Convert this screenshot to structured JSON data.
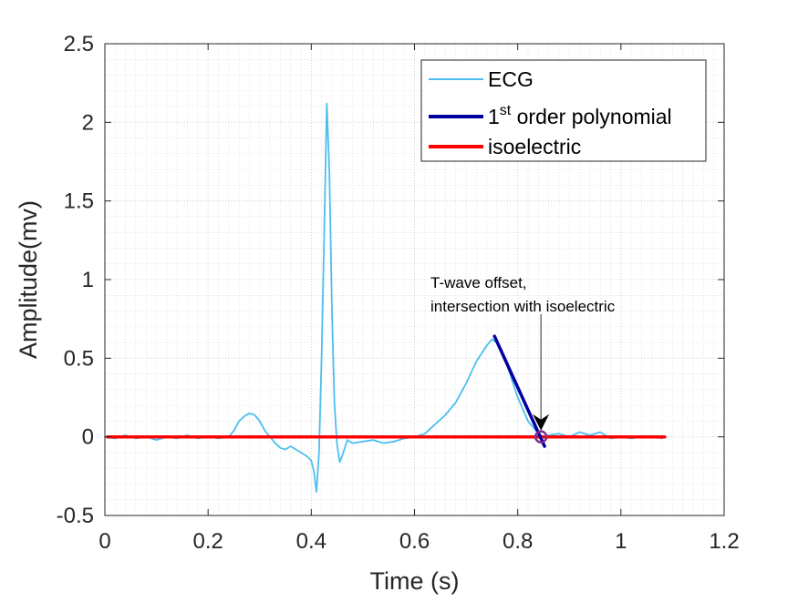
{
  "chart_data": {
    "type": "line",
    "title": "",
    "xlabel": "Time (s)",
    "ylabel": "Amplitude(mv)",
    "xlim": [
      0,
      1.2
    ],
    "ylim": [
      -0.5,
      2.5
    ],
    "x_ticks": [
      0,
      0.2,
      0.4,
      0.6,
      0.8,
      1,
      1.2
    ],
    "x_tick_labels": [
      "0",
      "0.2",
      "0.4",
      "0.6",
      "0.8",
      "1",
      "1.2"
    ],
    "y_ticks": [
      -0.5,
      0,
      0.5,
      1,
      1.5,
      2,
      2.5
    ],
    "y_tick_labels": [
      "-0.5",
      "0",
      "0.5",
      "1",
      "1.5",
      "2",
      "2.5"
    ],
    "grid": "major and minor, dotted",
    "legend_position": "top-right",
    "legend": [
      {
        "label": "ECG",
        "color": "#4DBEEE"
      },
      {
        "label": "1",
        "superscript": "st",
        "label_rest": " order polynomial",
        "color": "#0000A0"
      },
      {
        "label": "isoelectric",
        "color": "#FF0000"
      }
    ],
    "series": [
      {
        "name": "ECG",
        "color": "#4DBEEE",
        "x": [
          0.0,
          0.02,
          0.04,
          0.06,
          0.08,
          0.1,
          0.12,
          0.14,
          0.16,
          0.18,
          0.2,
          0.22,
          0.24,
          0.25,
          0.26,
          0.27,
          0.28,
          0.29,
          0.3,
          0.31,
          0.32,
          0.33,
          0.34,
          0.35,
          0.36,
          0.37,
          0.38,
          0.39,
          0.4,
          0.405,
          0.41,
          0.415,
          0.42,
          0.425,
          0.43,
          0.435,
          0.44,
          0.445,
          0.45,
          0.455,
          0.46,
          0.47,
          0.48,
          0.5,
          0.52,
          0.54,
          0.56,
          0.58,
          0.6,
          0.62,
          0.64,
          0.66,
          0.68,
          0.7,
          0.72,
          0.74,
          0.75,
          0.76,
          0.78,
          0.8,
          0.82,
          0.84,
          0.85,
          0.86,
          0.88,
          0.9,
          0.92,
          0.94,
          0.96,
          0.98,
          1.0,
          1.02,
          1.04,
          1.06,
          1.08
        ],
        "y": [
          0.0,
          -0.01,
          0.01,
          -0.01,
          0.0,
          -0.02,
          0.0,
          -0.01,
          0.01,
          -0.01,
          0.0,
          -0.01,
          0.0,
          0.04,
          0.1,
          0.13,
          0.15,
          0.14,
          0.1,
          0.04,
          0.0,
          -0.04,
          -0.07,
          -0.08,
          -0.06,
          -0.08,
          -0.1,
          -0.12,
          -0.15,
          -0.22,
          -0.35,
          -0.1,
          0.5,
          1.3,
          2.12,
          1.7,
          0.8,
          0.2,
          -0.05,
          -0.16,
          -0.12,
          -0.02,
          -0.04,
          -0.03,
          -0.02,
          -0.04,
          -0.03,
          -0.01,
          0.0,
          0.02,
          0.08,
          0.14,
          0.22,
          0.34,
          0.48,
          0.58,
          0.62,
          0.6,
          0.45,
          0.25,
          0.1,
          0.02,
          0.0,
          0.01,
          0.02,
          0.0,
          0.03,
          0.01,
          0.03,
          -0.01,
          0.0,
          -0.01,
          0.0,
          0.0,
          -0.01
        ]
      },
      {
        "name": "1st order polynomial",
        "color": "#0000A0",
        "x": [
          0.755,
          0.852
        ],
        "y": [
          0.64,
          -0.06
        ]
      },
      {
        "name": "isoelectric",
        "color": "#FF0000",
        "x": [
          0.005,
          1.085
        ],
        "y": [
          0.0,
          0.0
        ]
      }
    ],
    "marker_point": {
      "x": 0.845,
      "y": 0.0,
      "color": "#7E2F8E"
    },
    "annotation": {
      "lines": [
        "T-wave offset,",
        " intersection with isoelectric"
      ],
      "arrow_from": {
        "x": 0.845,
        "y": 0.78
      },
      "arrow_to": {
        "x": 0.845,
        "y": 0.04
      }
    }
  }
}
